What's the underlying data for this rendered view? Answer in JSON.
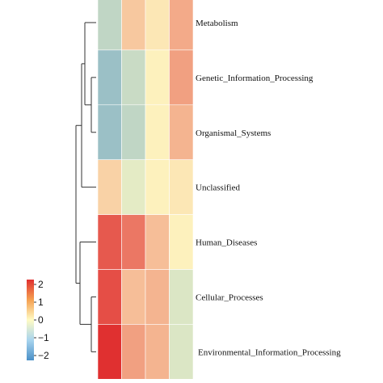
{
  "chart_data": {
    "type": "heatmap",
    "title": "",
    "xlabel": "",
    "ylabel": "",
    "rows": [
      "Metabolism",
      "Genetic_Information_Processing",
      "Organismal_Systems",
      "Unclassified",
      "Human_Diseases",
      "Cellular_Processes",
      "Environmental_Information_Processing"
    ],
    "columns": [
      "",
      "",
      "",
      ""
    ],
    "values": [
      [
        -0.7,
        0.5,
        0.2,
        0.8
      ],
      [
        -1.1,
        -0.6,
        0.1,
        0.9
      ],
      [
        -1.1,
        -0.7,
        0.1,
        0.7
      ],
      [
        0.4,
        -0.3,
        0.1,
        0.2
      ],
      [
        1.6,
        1.3,
        0.6,
        0.1
      ],
      [
        1.7,
        0.6,
        0.7,
        -0.4
      ],
      [
        2.1,
        0.9,
        0.7,
        -0.4
      ]
    ],
    "color_scale": {
      "min": -2,
      "max": 2,
      "low_color": "#4a90c8",
      "mid_color": "#fffbc4",
      "high_color": "#e03030",
      "ticks": [
        "2",
        "1",
        "0",
        "−1",
        "−2"
      ]
    },
    "row_dendrogram": true,
    "legend_position": "bottom-left"
  }
}
